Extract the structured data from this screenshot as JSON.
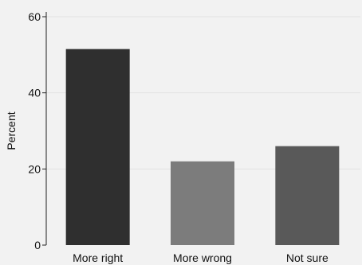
{
  "chart_data": {
    "type": "bar",
    "categories": [
      "More right",
      "More wrong",
      "Not sure"
    ],
    "values": [
      51.5,
      22,
      26
    ],
    "colors": [
      "#2f2f2f",
      "#7c7c7c",
      "#595959"
    ],
    "title": "",
    "xlabel": "",
    "ylabel": "Percent",
    "ylim": [
      0,
      60
    ],
    "yticks": [
      0,
      20,
      40,
      60
    ],
    "grid": true
  }
}
